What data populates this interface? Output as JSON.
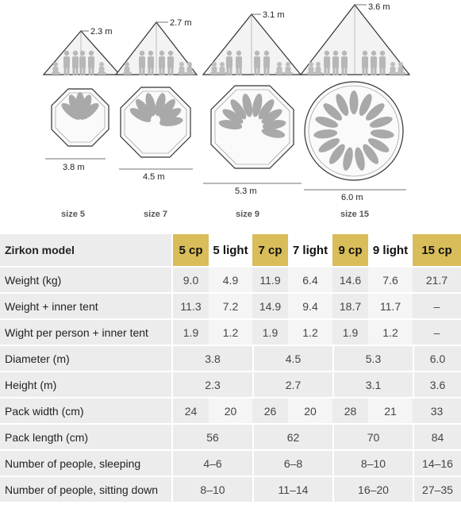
{
  "illustration": {
    "tents": [
      {
        "height": "2.3 m",
        "diameter": "3.8 m",
        "size": "size 5"
      },
      {
        "height": "2.7 m",
        "diameter": "4.5 m",
        "size": "size 7"
      },
      {
        "height": "3.1 m",
        "diameter": "5.3 m",
        "size": "size 9"
      },
      {
        "height": "3.6 m",
        "diameter": "6.0 m",
        "size": "size 15"
      }
    ]
  },
  "table": {
    "header_label": "Zirkon model",
    "models": [
      "5 cp",
      "5 light",
      "7 cp",
      "7 light",
      "9 cp",
      "9 light",
      "15 cp"
    ],
    "rows": [
      {
        "label": "Weight (kg)",
        "cells": [
          "9.0",
          "4.9",
          "11.9",
          "6.4",
          "14.6",
          "7.6",
          "21.7"
        ]
      },
      {
        "label": "Weight + inner tent",
        "cells": [
          "11.3",
          "7.2",
          "14.9",
          "9.4",
          "18.7",
          "11.7",
          "–"
        ]
      },
      {
        "label": "Wight per person + inner tent",
        "cells": [
          "1.9",
          "1.2",
          "1.9",
          "1.2",
          "1.9",
          "1.2",
          "–"
        ]
      },
      {
        "label": "Diameter (m)",
        "merged": [
          "3.8",
          "4.5",
          "5.3",
          "6.0"
        ]
      },
      {
        "label": "Height (m)",
        "merged": [
          "2.3",
          "2.7",
          "3.1",
          "3.6"
        ]
      },
      {
        "label": "Pack width (cm)",
        "cells": [
          "24",
          "20",
          "26",
          "20",
          "28",
          "21",
          "33"
        ]
      },
      {
        "label": "Pack length (cm)",
        "merged": [
          "56",
          "62",
          "70",
          "84"
        ]
      },
      {
        "label": "Number of people, sleeping",
        "merged": [
          "4–6",
          "6–8",
          "8–10",
          "14–16"
        ]
      },
      {
        "label": "Number of people, sitting down",
        "merged": [
          "8–10",
          "11–14",
          "16–20",
          "27–35"
        ]
      }
    ]
  }
}
